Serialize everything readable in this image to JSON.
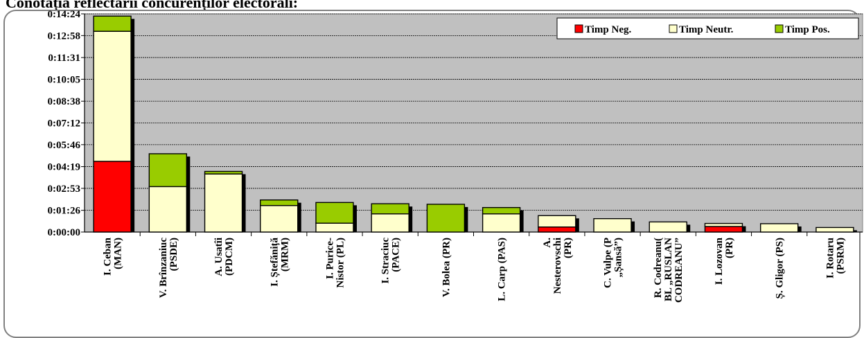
{
  "title": "Conotația reflectării concurenților electorali:",
  "colors": {
    "neg": "#ff0000",
    "neutr": "#ffffcc",
    "pos": "#99cc00",
    "plot_bg": "#c0c0c0"
  },
  "chart_data": {
    "type": "bar",
    "stacked": true,
    "title": "Conotația reflectării concurenților electorali:",
    "xlabel": "",
    "ylabel": "",
    "ylim": [
      "0:00:00",
      "0:14:24"
    ],
    "yticks": [
      "0:00:00",
      "0:01:26",
      "0:02:53",
      "0:04:19",
      "0:05:46",
      "0:07:12",
      "0:08:38",
      "0:10:05",
      "0:11:31",
      "0:12:58",
      "0:14:24"
    ],
    "grid": true,
    "legend_position": "top-right",
    "categories": [
      [
        "I. Ceban",
        "(MAN)"
      ],
      [
        "V. Brînzaniuc",
        "(PSDE)"
      ],
      [
        "A. Usatîi",
        "(PDCM)"
      ],
      [
        "I. Ștefăniță",
        "(MRM)"
      ],
      [
        "I. Purice-",
        "Nistor (PL)"
      ],
      [
        "I. Straciuc",
        "(PACE)"
      ],
      [
        "V. Bolea (PR)"
      ],
      [
        "L. Carp (PAS)"
      ],
      [
        "A.",
        "Nesterovschi",
        "(PR)"
      ],
      [
        "C. Vulpe (P",
        "„Șansă”)"
      ],
      [
        "R. Codreanu(",
        "BL „RUSLAN",
        "CODREANU”"
      ],
      [
        "I. Lozovan",
        "(PR)"
      ],
      [
        "Ș. Gligor (PS)"
      ],
      [
        "I. Rotaru",
        "(PSRM)"
      ]
    ],
    "series": [
      {
        "name": "Timp Neg.",
        "values": [
          "0:04:40",
          "0:00:00",
          "0:00:00",
          "0:00:00",
          "0:00:00",
          "0:00:00",
          "0:00:00",
          "0:00:00",
          "0:00:20",
          "0:00:00",
          "0:00:00",
          "0:00:22",
          "0:00:00",
          "0:00:00"
        ]
      },
      {
        "name": "Timp Neutr.",
        "values": [
          "0:08:35",
          "0:03:00",
          "0:03:50",
          "0:01:45",
          "0:00:35",
          "0:01:12",
          "0:00:00",
          "0:01:12",
          "0:00:45",
          "0:00:53",
          "0:00:40",
          "0:00:12",
          "0:00:33",
          "0:00:18"
        ]
      },
      {
        "name": "Timp Pos.",
        "values": [
          "0:01:00",
          "0:02:10",
          "0:00:10",
          "0:00:22",
          "0:01:22",
          "0:00:40",
          "0:01:50",
          "0:00:25",
          "0:00:00",
          "0:00:00",
          "0:00:00",
          "0:00:00",
          "0:00:00",
          "0:00:00"
        ]
      }
    ]
  }
}
